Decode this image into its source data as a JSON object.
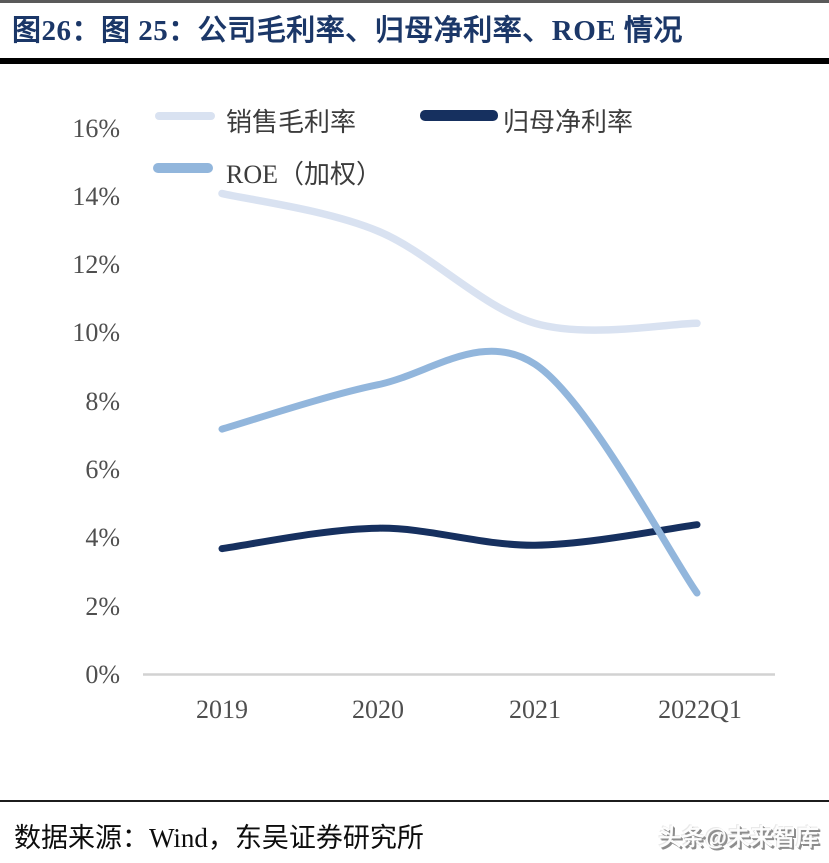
{
  "header": {
    "title": "图26：图 25：公司毛利率、归母净利率、ROE 情况"
  },
  "chart_data": {
    "type": "line",
    "smooth": true,
    "x": [
      "2019",
      "2020",
      "2021",
      "2022Q1"
    ],
    "series": [
      {
        "name": "销售毛利率",
        "values": [
          14.1,
          13.0,
          10.3,
          10.3
        ],
        "color": "#d9e2f1"
      },
      {
        "name": "归母净利率",
        "values": [
          3.7,
          4.3,
          3.8,
          4.4
        ],
        "color": "#16305f"
      },
      {
        "name": "ROE（加权）",
        "values": [
          7.2,
          8.5,
          9.1,
          2.4
        ],
        "color": "#92b6dc"
      }
    ],
    "ylim": [
      0,
      16
    ],
    "ytick_step": 2,
    "ytick_labels": [
      "16%",
      "14%",
      "12%",
      "10%",
      "8%",
      "6%",
      "4%",
      "2%",
      "0%"
    ],
    "grid": false,
    "legend_position": "top-left",
    "axis_line_color": "#d2d2d2"
  },
  "footer": {
    "source": "数据来源：Wind，东吴证券研究所",
    "watermark": "头条@未来智库"
  }
}
